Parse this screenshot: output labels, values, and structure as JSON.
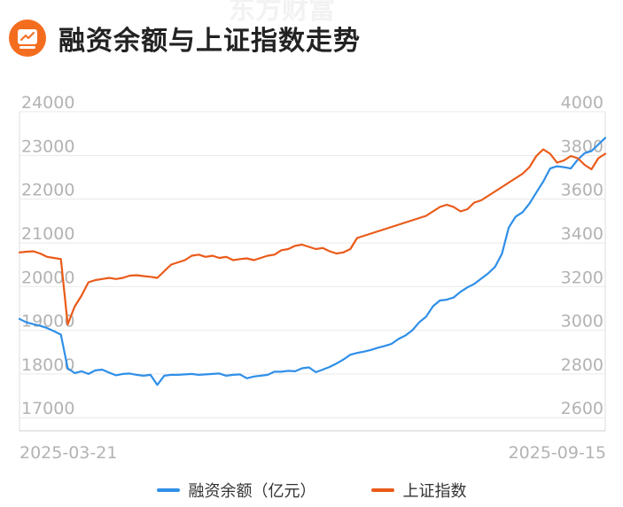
{
  "header": {
    "title": "融资余额与上证指数走势",
    "watermark": "东方财富",
    "icon": "chart-monitor-icon",
    "brand_color": "#f46d1f"
  },
  "chart_data": {
    "type": "line",
    "x_start_label": "2025-03-21",
    "x_end_label": "2025-09-15",
    "y_left_ticks": [
      "24000",
      "23000",
      "22000",
      "21000",
      "20000",
      "19000",
      "18000",
      "17000"
    ],
    "y_right_ticks": [
      "4000",
      "3800",
      "3600",
      "3400",
      "3200",
      "3000",
      "2800",
      "2600"
    ],
    "y_left_range": [
      16700,
      24000
    ],
    "y_right_range": [
      2560,
      4000
    ],
    "grid": true,
    "legend_position": "bottom",
    "series": [
      {
        "name": "融资余额（亿元）",
        "axis": "left",
        "color": "#2f8fe8",
        "values": [
          19260,
          19180,
          19140,
          19100,
          19050,
          18980,
          18900,
          18130,
          18020,
          18060,
          18000,
          18080,
          18100,
          18030,
          17970,
          18000,
          18010,
          17980,
          17960,
          17980,
          17750,
          17960,
          17980,
          17980,
          17990,
          18000,
          17980,
          17990,
          18000,
          18010,
          17960,
          17980,
          17990,
          17900,
          17940,
          17960,
          17980,
          18050,
          18050,
          18070,
          18060,
          18130,
          18150,
          18040,
          18100,
          18160,
          18240,
          18330,
          18440,
          18480,
          18510,
          18550,
          18600,
          18640,
          18690,
          18800,
          18880,
          19000,
          19180,
          19310,
          19550,
          19680,
          19700,
          19750,
          19880,
          19980,
          20060,
          20180,
          20300,
          20450,
          20750,
          21350,
          21600,
          21700,
          21900,
          22150,
          22400,
          22700,
          22750,
          22730,
          22700,
          22900,
          23050,
          23100,
          23250,
          23400
        ]
      },
      {
        "name": "上证指数",
        "axis": "right",
        "color": "#ea5a19",
        "values": [
          3365,
          3368,
          3370,
          3360,
          3345,
          3340,
          3335,
          3040,
          3120,
          3170,
          3230,
          3240,
          3245,
          3250,
          3245,
          3250,
          3260,
          3262,
          3258,
          3255,
          3250,
          3280,
          3310,
          3320,
          3330,
          3350,
          3355,
          3345,
          3350,
          3340,
          3345,
          3330,
          3335,
          3338,
          3330,
          3340,
          3350,
          3355,
          3375,
          3380,
          3395,
          3400,
          3390,
          3380,
          3385,
          3370,
          3360,
          3365,
          3380,
          3430,
          3440,
          3450,
          3460,
          3470,
          3480,
          3490,
          3500,
          3510,
          3520,
          3530,
          3550,
          3570,
          3580,
          3570,
          3550,
          3560,
          3590,
          3600,
          3620,
          3640,
          3660,
          3680,
          3700,
          3720,
          3750,
          3800,
          3830,
          3810,
          3770,
          3780,
          3800,
          3790,
          3760,
          3740,
          3790,
          3810
        ]
      }
    ]
  }
}
